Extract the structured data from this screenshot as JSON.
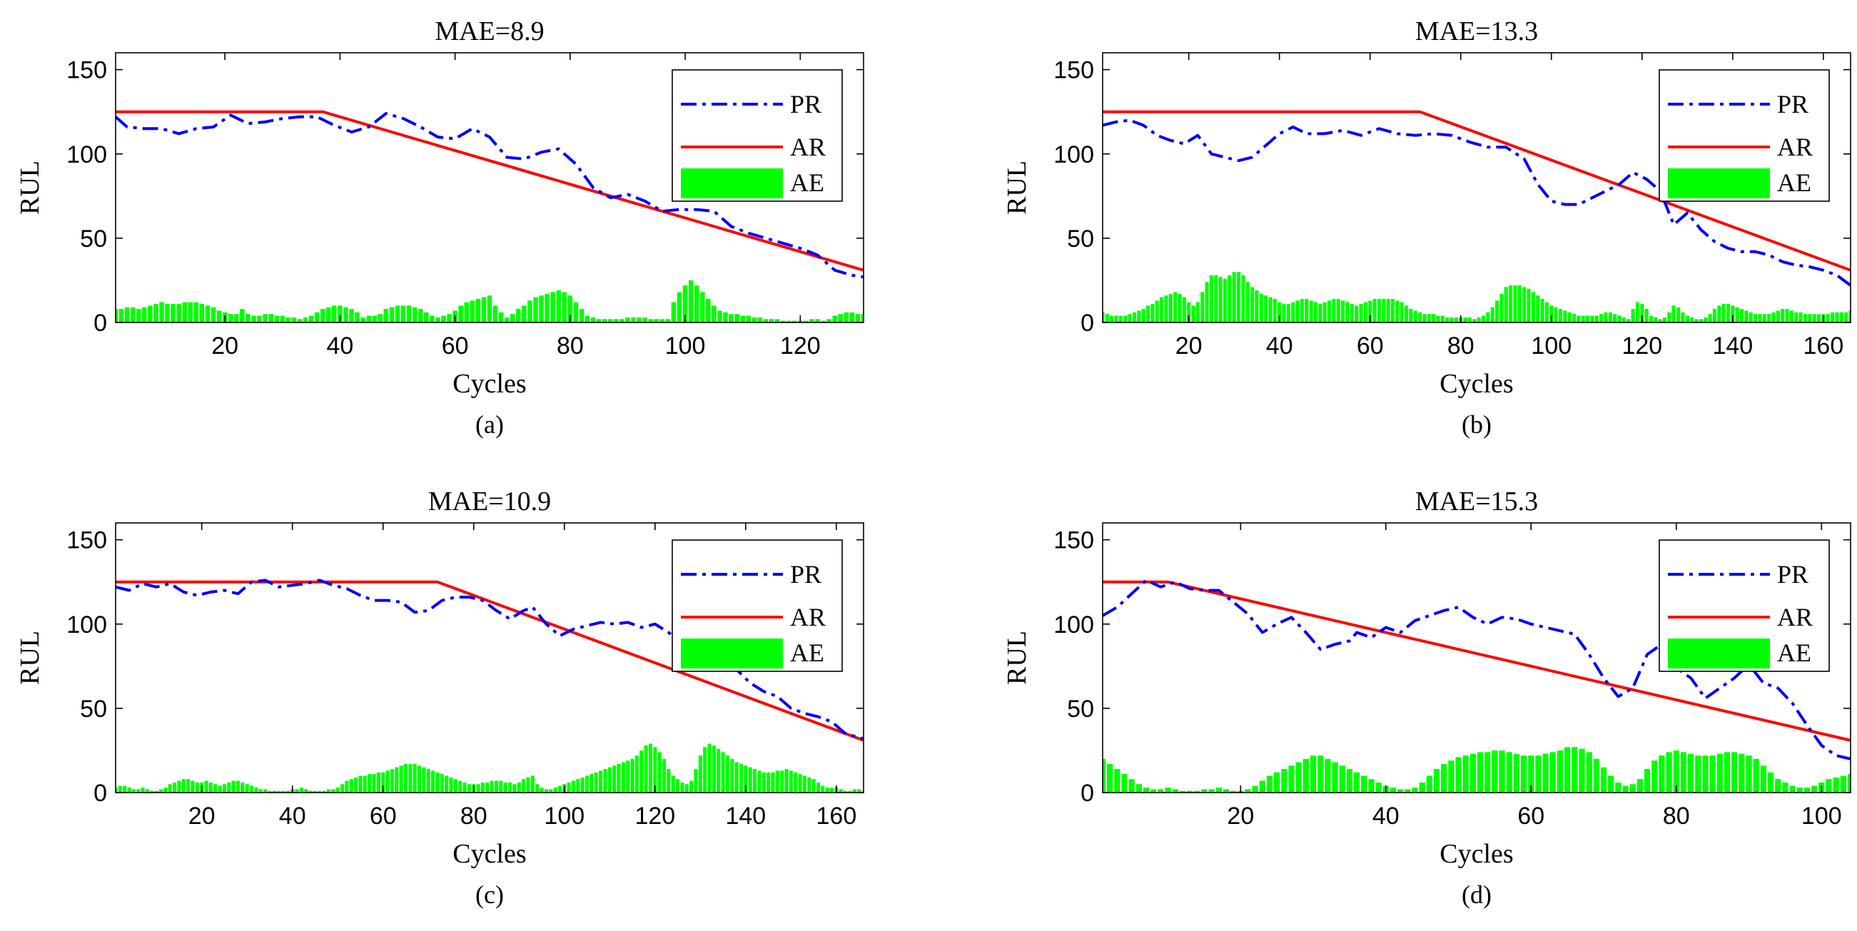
{
  "figure": {
    "legend_labels": {
      "pr": "PR",
      "ar": "AR",
      "ae": "AE"
    },
    "colors": {
      "pr": "#0000ff",
      "ar": "#ff0000",
      "ae": "#00ff00",
      "axis": "#000000"
    }
  },
  "chart_data": [
    {
      "id": "a",
      "type": "line",
      "title": "MAE=8.9",
      "caption": "(a)",
      "xlabel": "Cycles",
      "ylabel": "RUL",
      "xlim": [
        1,
        131
      ],
      "ylim": [
        0,
        160
      ],
      "xticks": [
        20,
        40,
        60,
        80,
        100,
        120
      ],
      "yticks": [
        0,
        50,
        100,
        150
      ],
      "legend": "top-right",
      "ar": [
        [
          1,
          125
        ],
        [
          37,
          125
        ],
        [
          131,
          31
        ]
      ],
      "pr": [
        [
          1,
          122
        ],
        [
          3,
          116
        ],
        [
          6,
          115
        ],
        [
          9,
          115
        ],
        [
          12,
          112
        ],
        [
          15,
          115
        ],
        [
          18,
          116
        ],
        [
          21,
          123
        ],
        [
          24,
          118
        ],
        [
          27,
          119
        ],
        [
          30,
          121
        ],
        [
          33,
          122
        ],
        [
          36,
          122
        ],
        [
          39,
          117
        ],
        [
          42,
          113
        ],
        [
          45,
          116
        ],
        [
          48,
          124
        ],
        [
          51,
          121
        ],
        [
          54,
          116
        ],
        [
          57,
          110
        ],
        [
          60,
          109
        ],
        [
          63,
          115
        ],
        [
          66,
          110
        ],
        [
          69,
          98
        ],
        [
          72,
          97
        ],
        [
          75,
          101
        ],
        [
          78,
          103
        ],
        [
          81,
          94
        ],
        [
          84,
          80
        ],
        [
          87,
          74
        ],
        [
          90,
          76
        ],
        [
          93,
          72
        ],
        [
          96,
          66
        ],
        [
          99,
          67
        ],
        [
          102,
          67
        ],
        [
          105,
          66
        ],
        [
          108,
          57
        ],
        [
          111,
          53
        ],
        [
          114,
          50
        ],
        [
          117,
          47
        ],
        [
          120,
          44
        ],
        [
          123,
          40
        ],
        [
          126,
          31
        ],
        [
          129,
          28
        ],
        [
          131,
          27
        ]
      ],
      "ae": [
        8,
        8,
        9,
        9,
        8,
        9,
        10,
        11,
        12,
        11,
        11,
        11,
        12,
        12,
        12,
        11,
        10,
        9,
        7,
        6,
        5,
        5,
        8,
        5,
        4,
        4,
        5,
        5,
        4,
        4,
        3,
        3,
        2,
        3,
        4,
        6,
        8,
        9,
        10,
        10,
        9,
        8,
        6,
        3,
        4,
        4,
        5,
        8,
        9,
        10,
        10,
        10,
        9,
        8,
        6,
        4,
        3,
        4,
        5,
        7,
        10,
        12,
        13,
        14,
        15,
        16,
        10,
        6,
        3,
        5,
        8,
        10,
        13,
        15,
        16,
        17,
        18,
        19,
        18,
        16,
        12,
        8,
        4,
        3,
        2,
        2,
        2,
        2,
        2,
        3,
        3,
        3,
        3,
        2,
        2,
        2,
        2,
        12,
        18,
        22,
        25,
        22,
        18,
        14,
        10,
        7,
        6,
        5,
        5,
        4,
        4,
        3,
        3,
        2,
        2,
        2,
        1,
        1,
        1,
        1,
        1,
        2,
        2,
        1,
        2,
        4,
        5,
        6,
        6,
        5,
        5
      ]
    },
    {
      "id": "b",
      "type": "line",
      "title": "MAE=13.3",
      "caption": "(b)",
      "xlabel": "Cycles",
      "ylabel": "RUL",
      "xlim": [
        1,
        166
      ],
      "ylim": [
        0,
        160
      ],
      "xticks": [
        20,
        40,
        60,
        80,
        100,
        120,
        140,
        160
      ],
      "yticks": [
        0,
        50,
        100,
        150
      ],
      "legend": "top-right",
      "ar": [
        [
          1,
          125
        ],
        [
          71,
          125
        ],
        [
          166,
          31
        ]
      ],
      "pr": [
        [
          1,
          117
        ],
        [
          4,
          119
        ],
        [
          7,
          120
        ],
        [
          10,
          117
        ],
        [
          13,
          111
        ],
        [
          16,
          108
        ],
        [
          19,
          106
        ],
        [
          22,
          111
        ],
        [
          25,
          100
        ],
        [
          28,
          98
        ],
        [
          31,
          96
        ],
        [
          34,
          98
        ],
        [
          37,
          105
        ],
        [
          40,
          112
        ],
        [
          43,
          116
        ],
        [
          46,
          112
        ],
        [
          50,
          112
        ],
        [
          54,
          114
        ],
        [
          58,
          111
        ],
        [
          62,
          115
        ],
        [
          66,
          112
        ],
        [
          70,
          111
        ],
        [
          74,
          112
        ],
        [
          78,
          111
        ],
        [
          82,
          107
        ],
        [
          86,
          104
        ],
        [
          90,
          104
        ],
        [
          94,
          97
        ],
        [
          97,
          82
        ],
        [
          100,
          72
        ],
        [
          103,
          70
        ],
        [
          106,
          70
        ],
        [
          109,
          74
        ],
        [
          112,
          78
        ],
        [
          115,
          82
        ],
        [
          118,
          89
        ],
        [
          121,
          85
        ],
        [
          124,
          78
        ],
        [
          127,
          58
        ],
        [
          130,
          65
        ],
        [
          133,
          55
        ],
        [
          136,
          48
        ],
        [
          139,
          44
        ],
        [
          142,
          42
        ],
        [
          145,
          42
        ],
        [
          148,
          40
        ],
        [
          151,
          36
        ],
        [
          154,
          34
        ],
        [
          157,
          33
        ],
        [
          160,
          31
        ],
        [
          163,
          28
        ],
        [
          166,
          22
        ]
      ],
      "ae": [
        6,
        5,
        4,
        4,
        4,
        4,
        5,
        6,
        7,
        8,
        10,
        11,
        13,
        15,
        16,
        17,
        18,
        17,
        15,
        12,
        10,
        12,
        18,
        24,
        28,
        28,
        27,
        26,
        28,
        30,
        30,
        28,
        24,
        21,
        19,
        17,
        16,
        15,
        14,
        12,
        11,
        11,
        12,
        13,
        14,
        14,
        13,
        12,
        11,
        12,
        13,
        14,
        14,
        13,
        12,
        11,
        10,
        11,
        12,
        13,
        14,
        14,
        14,
        14,
        14,
        13,
        12,
        10,
        8,
        7,
        6,
        5,
        5,
        5,
        4,
        4,
        3,
        3,
        3,
        3,
        3,
        3,
        2,
        3,
        4,
        6,
        9,
        13,
        17,
        21,
        22,
        22,
        22,
        21,
        20,
        18,
        16,
        14,
        12,
        10,
        9,
        8,
        7,
        6,
        5,
        4,
        4,
        4,
        4,
        4,
        5,
        6,
        6,
        5,
        4,
        3,
        2,
        8,
        12,
        11,
        8,
        4,
        3,
        2,
        3,
        6,
        10,
        9,
        6,
        4,
        3,
        2,
        2,
        3,
        5,
        8,
        10,
        11,
        11,
        10,
        9,
        8,
        7,
        6,
        5,
        5,
        5,
        5,
        6,
        7,
        8,
        8,
        7,
        6,
        6,
        5,
        5,
        5,
        5,
        5,
        5,
        6,
        6,
        6,
        6,
        7
      ]
    },
    {
      "id": "c",
      "type": "line",
      "title": "MAE=10.9",
      "caption": "(c)",
      "xlabel": "Cycles",
      "ylabel": "RUL",
      "xlim": [
        1,
        166
      ],
      "ylim": [
        0,
        160
      ],
      "xticks": [
        20,
        40,
        60,
        80,
        100,
        120,
        140,
        160
      ],
      "yticks": [
        0,
        50,
        100,
        150
      ],
      "legend": "top-right",
      "ar": [
        [
          1,
          125
        ],
        [
          72,
          125
        ],
        [
          166,
          31
        ]
      ],
      "pr": [
        [
          1,
          122
        ],
        [
          4,
          120
        ],
        [
          7,
          124
        ],
        [
          10,
          122
        ],
        [
          13,
          124
        ],
        [
          16,
          119
        ],
        [
          19,
          117
        ],
        [
          22,
          119
        ],
        [
          25,
          120
        ],
        [
          28,
          118
        ],
        [
          31,
          125
        ],
        [
          34,
          126
        ],
        [
          37,
          122
        ],
        [
          40,
          123
        ],
        [
          43,
          124
        ],
        [
          46,
          126
        ],
        [
          49,
          123
        ],
        [
          52,
          121
        ],
        [
          55,
          117
        ],
        [
          58,
          114
        ],
        [
          61,
          114
        ],
        [
          64,
          113
        ],
        [
          67,
          107
        ],
        [
          70,
          108
        ],
        [
          73,
          114
        ],
        [
          76,
          116
        ],
        [
          79,
          116
        ],
        [
          82,
          114
        ],
        [
          85,
          108
        ],
        [
          88,
          103
        ],
        [
          91,
          108
        ],
        [
          93,
          110
        ],
        [
          96,
          100
        ],
        [
          99,
          93
        ],
        [
          102,
          97
        ],
        [
          105,
          99
        ],
        [
          108,
          101
        ],
        [
          111,
          100
        ],
        [
          114,
          101
        ],
        [
          117,
          98
        ],
        [
          120,
          100
        ],
        [
          123,
          95
        ],
        [
          126,
          88
        ],
        [
          129,
          82
        ],
        [
          132,
          78
        ],
        [
          135,
          76
        ],
        [
          138,
          73
        ],
        [
          141,
          65
        ],
        [
          144,
          60
        ],
        [
          147,
          57
        ],
        [
          150,
          50
        ],
        [
          153,
          47
        ],
        [
          156,
          45
        ],
        [
          159,
          42
        ],
        [
          162,
          35
        ],
        [
          166,
          32
        ]
      ],
      "ae": [
        3,
        4,
        4,
        3,
        2,
        2,
        3,
        2,
        1,
        1,
        2,
        3,
        5,
        6,
        7,
        8,
        8,
        7,
        6,
        6,
        7,
        6,
        5,
        4,
        5,
        6,
        7,
        7,
        6,
        5,
        4,
        3,
        2,
        2,
        1,
        1,
        1,
        1,
        1,
        2,
        2,
        3,
        2,
        1,
        1,
        1,
        1,
        2,
        2,
        3,
        5,
        7,
        8,
        9,
        10,
        10,
        11,
        11,
        12,
        12,
        13,
        14,
        15,
        16,
        17,
        17,
        17,
        16,
        15,
        14,
        13,
        12,
        11,
        10,
        9,
        8,
        7,
        6,
        5,
        5,
        5,
        6,
        6,
        7,
        7,
        7,
        6,
        6,
        5,
        6,
        8,
        9,
        10,
        5,
        3,
        2,
        2,
        3,
        4,
        5,
        6,
        7,
        8,
        9,
        10,
        11,
        12,
        13,
        14,
        15,
        16,
        17,
        18,
        19,
        20,
        22,
        25,
        28,
        29,
        27,
        24,
        20,
        14,
        10,
        8,
        6,
        5,
        7,
        14,
        22,
        27,
        29,
        28,
        26,
        24,
        22,
        20,
        18,
        17,
        16,
        15,
        14,
        13,
        12,
        12,
        12,
        13,
        13,
        14,
        13,
        12,
        11,
        10,
        9,
        8,
        6,
        4,
        3,
        3,
        3,
        2,
        1,
        1,
        2,
        2,
        1
      ]
    },
    {
      "id": "d",
      "type": "line",
      "title": "MAE=15.3",
      "caption": "(d)",
      "xlabel": "Cycles",
      "ylabel": "RUL",
      "xlim": [
        1,
        104
      ],
      "ylim": [
        0,
        160
      ],
      "xticks": [
        20,
        40,
        60,
        80,
        100
      ],
      "yticks": [
        0,
        50,
        100,
        150
      ],
      "legend": "top-right",
      "ar": [
        [
          1,
          125
        ],
        [
          10,
          125
        ],
        [
          104,
          31
        ]
      ],
      "pr": [
        [
          1,
          105
        ],
        [
          3,
          110
        ],
        [
          5,
          118
        ],
        [
          7,
          126
        ],
        [
          9,
          122
        ],
        [
          11,
          125
        ],
        [
          13,
          121
        ],
        [
          15,
          120
        ],
        [
          17,
          120
        ],
        [
          19,
          113
        ],
        [
          21,
          106
        ],
        [
          23,
          95
        ],
        [
          25,
          100
        ],
        [
          27,
          104
        ],
        [
          29,
          95
        ],
        [
          31,
          85
        ],
        [
          33,
          88
        ],
        [
          35,
          90
        ],
        [
          36,
          95
        ],
        [
          38,
          92
        ],
        [
          40,
          98
        ],
        [
          42,
          95
        ],
        [
          44,
          102
        ],
        [
          46,
          105
        ],
        [
          48,
          108
        ],
        [
          50,
          110
        ],
        [
          52,
          104
        ],
        [
          54,
          100
        ],
        [
          56,
          104
        ],
        [
          58,
          103
        ],
        [
          60,
          100
        ],
        [
          62,
          98
        ],
        [
          64,
          96
        ],
        [
          66,
          94
        ],
        [
          68,
          82
        ],
        [
          70,
          68
        ],
        [
          72,
          57
        ],
        [
          74,
          62
        ],
        [
          76,
          82
        ],
        [
          78,
          88
        ],
        [
          80,
          74
        ],
        [
          82,
          68
        ],
        [
          84,
          56
        ],
        [
          86,
          62
        ],
        [
          88,
          68
        ],
        [
          90,
          76
        ],
        [
          92,
          65
        ],
        [
          94,
          62
        ],
        [
          96,
          53
        ],
        [
          98,
          40
        ],
        [
          100,
          28
        ],
        [
          102,
          22
        ],
        [
          104,
          20
        ]
      ],
      "ae": [
        20,
        17,
        14,
        11,
        8,
        5,
        3,
        2,
        2,
        3,
        2,
        1,
        1,
        1,
        2,
        2,
        3,
        2,
        1,
        1,
        2,
        4,
        7,
        10,
        12,
        14,
        16,
        18,
        20,
        22,
        22,
        20,
        18,
        16,
        14,
        12,
        10,
        8,
        6,
        4,
        3,
        2,
        2,
        3,
        6,
        10,
        14,
        17,
        19,
        21,
        22,
        23,
        24,
        24,
        25,
        25,
        24,
        23,
        22,
        22,
        22,
        23,
        24,
        25,
        27,
        27,
        26,
        24,
        20,
        15,
        10,
        6,
        4,
        5,
        8,
        14,
        19,
        22,
        24,
        25,
        24,
        23,
        22,
        22,
        22,
        23,
        24,
        24,
        23,
        22,
        20,
        16,
        12,
        8,
        6,
        4,
        3,
        3,
        4,
        6,
        8,
        9,
        10,
        11
      ]
    }
  ]
}
